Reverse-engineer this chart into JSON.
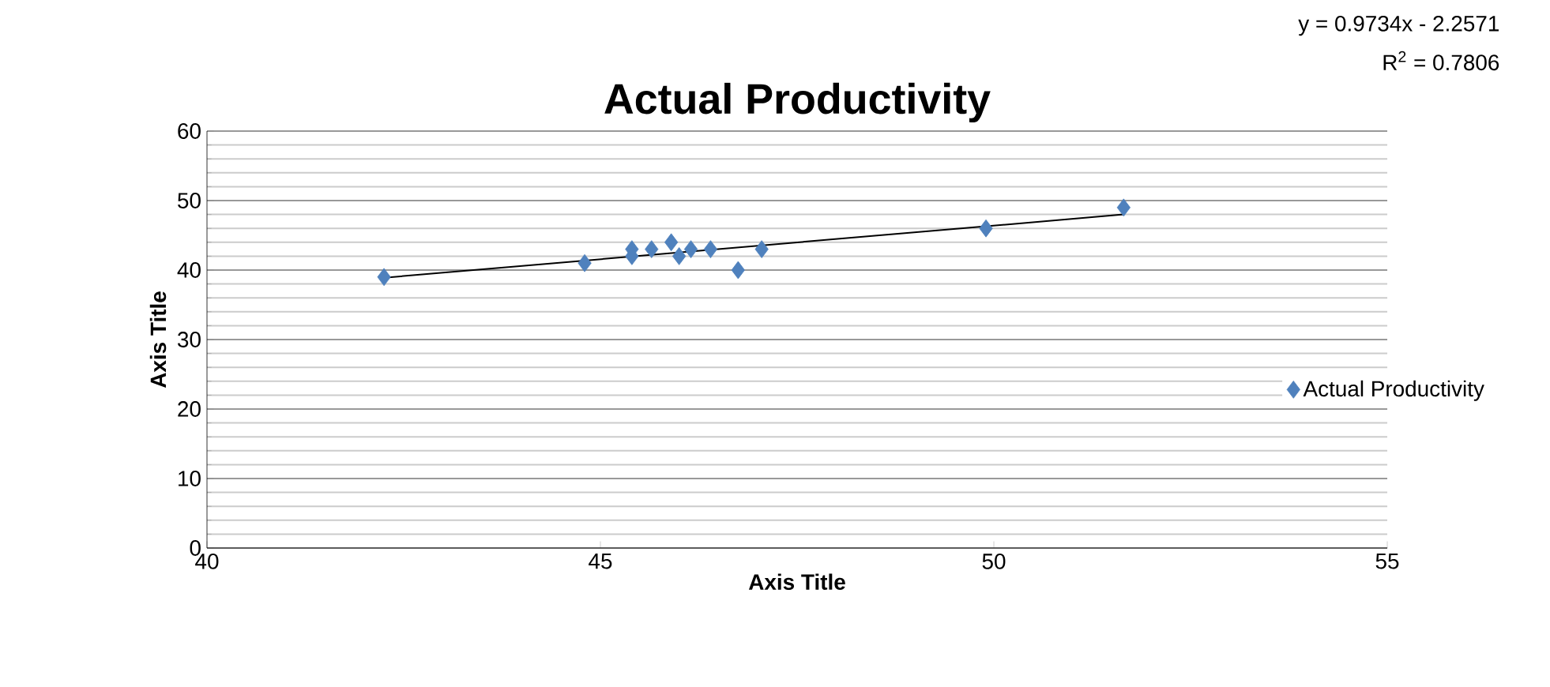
{
  "chart_data": {
    "type": "scatter",
    "title": "Actual Productivity",
    "xlabel": "Axis Title",
    "ylabel": "Axis Title",
    "xlim": [
      40,
      55
    ],
    "xticks": [
      40,
      45,
      50,
      55
    ],
    "ylim": [
      0,
      60
    ],
    "yticks": [
      0,
      10,
      20,
      30,
      40,
      50,
      60
    ],
    "grid": "y",
    "legend": "right",
    "marker": "diamond",
    "series": [
      {
        "name": "Actual Productivity",
        "color": "#4f81bd",
        "x": [
          42.25,
          44.8,
          45.4,
          45.4,
          45.65,
          45.9,
          46.0,
          46.15,
          46.4,
          46.75,
          47.05,
          49.9,
          51.65
        ],
        "values": [
          39,
          41,
          43,
          42,
          43,
          44,
          42,
          43,
          43,
          40,
          43,
          46,
          49
        ]
      },
      {
        "type": "line",
        "color": "#000000",
        "marker": "none",
        "x": [
          42.25,
          51.65
        ],
        "values": [
          38.9,
          48.0
        ]
      }
    ],
    "annotations": [
      "y = 0.9734x - 2.2571",
      "R$^{2}$ = 0.7806"
    ]
  }
}
